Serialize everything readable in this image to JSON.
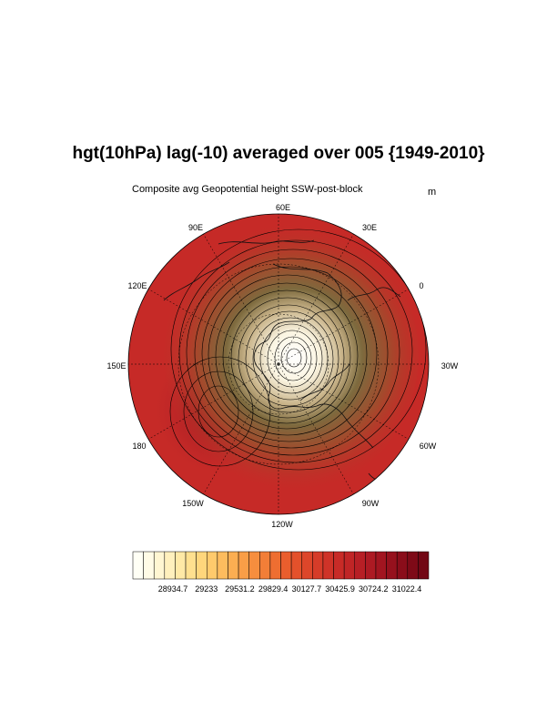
{
  "title": "hgt(10hPa) lag(-10) averaged over 005 {1949-2010}",
  "subtitle_left": "Composite avg Geopotential height SSW-post-block",
  "units": "m",
  "longitude_labels": [
    "60E",
    "30E",
    "0",
    "30W",
    "60W",
    "90W",
    "120W",
    "150W",
    "180",
    "150E",
    "120E",
    "90E"
  ],
  "colorbar": {
    "labels": [
      "28934.7",
      "29233",
      "29531.2",
      "29829.4",
      "30127.7",
      "30425.9",
      "30724.2",
      "31022.4"
    ],
    "colors": [
      "#fffff5",
      "#fffbe6",
      "#fff6d2",
      "#fff0bd",
      "#ffe9a6",
      "#ffe08f",
      "#ffd67c",
      "#ffca6c",
      "#fdbc5e",
      "#fbae52",
      "#f99e47",
      "#f68e3e",
      "#f27e37",
      "#ee6e31",
      "#ea5e2d",
      "#e4512b",
      "#dd462a",
      "#d63c29",
      "#cf3328",
      "#c82b27",
      "#c02526",
      "#b71f25",
      "#ad1a23",
      "#a21520",
      "#96111d",
      "#8a0d1a",
      "#7e0a17",
      "#720714"
    ]
  },
  "map": {
    "projection": "North polar stereographic",
    "low_center_color": "#ffffff",
    "field_color": "#c62a27",
    "high_color": "#9e1a1e"
  }
}
